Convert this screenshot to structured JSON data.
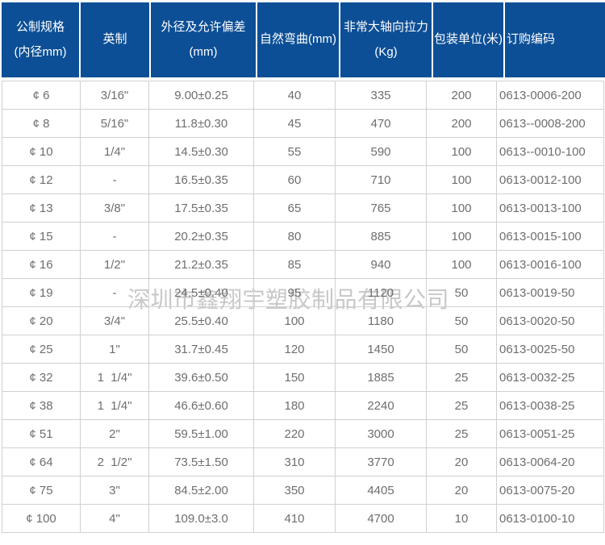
{
  "company_watermark": "深圳市鑫翔宇塑胶制品有限公司",
  "colors": {
    "header_bg": "#0c4f96",
    "header_text": "#ffffff",
    "body_text": "#6e6e6e",
    "border": "#d0d0d0",
    "watermark": "#c8c8c8"
  },
  "table": {
    "column_keys": [
      "metric-spec",
      "imperial",
      "outer-diameter",
      "natural-bend",
      "axial-tension",
      "packing-unit",
      "order-code"
    ],
    "headers": [
      {
        "lines": [
          "公制规格",
          "(内径mm)"
        ]
      },
      {
        "lines": [
          "英制"
        ]
      },
      {
        "lines": [
          "外径及允许偏差",
          "(mm)"
        ]
      },
      {
        "lines": [
          "自然弯曲(mm)"
        ]
      },
      {
        "lines": [
          "非常大轴向拉力",
          "(Kg)"
        ]
      },
      {
        "lines": [
          "包装单位(米)"
        ]
      },
      {
        "lines": [
          "订购编码"
        ]
      }
    ],
    "rows": [
      [
        "¢ 6",
        "3/16\"",
        "9.00±0.25",
        "40",
        "335",
        "200",
        "0613-0006-200"
      ],
      [
        "¢ 8",
        "5/16\"",
        "11.8±0.30",
        "45",
        "470",
        "200",
        "0613--0008-200"
      ],
      [
        "¢ 10",
        "1/4\"",
        "14.5±0.30",
        "55",
        "590",
        "100",
        "0613--0010-100"
      ],
      [
        "¢ 12",
        "-",
        "16.5±0.35",
        "60",
        "710",
        "100",
        "0613-0012-100"
      ],
      [
        "¢ 13",
        "3/8\"",
        "17.5±0.35",
        "65",
        "765",
        "100",
        "0613-0013-100"
      ],
      [
        "¢ 15",
        "-",
        "20.2±0.35",
        "80",
        "885",
        "100",
        "0613-0015-100"
      ],
      [
        "¢ 16",
        "1/2\"",
        "21.2±0.35",
        "85",
        "940",
        "100",
        "0613-0016-100"
      ],
      [
        "¢ 19",
        "-",
        "24.5±0.40",
        "95",
        "1120",
        "50",
        "0613-0019-50"
      ],
      [
        "¢ 20",
        "3/4\"",
        "25.5±0.40",
        "100",
        "1180",
        "50",
        "0613-0020-50"
      ],
      [
        "¢ 25",
        "1\"",
        "31.7±0.45",
        "120",
        "1450",
        "50",
        "0613-0025-50"
      ],
      [
        "¢ 32",
        "1  1/4\"",
        "39.6±0.50",
        "150",
        "1885",
        "25",
        "0613-0032-25"
      ],
      [
        "¢ 38",
        "1  1/4\"",
        "46.6±0.60",
        "180",
        "2240",
        "25",
        "0613-0038-25"
      ],
      [
        "¢ 51",
        "2\"",
        "59.5±1.00",
        "220",
        "3000",
        "25",
        "0613-0051-25"
      ],
      [
        "¢ 64",
        "2  1/2\"",
        "73.5±1.50",
        "310",
        "3770",
        "20",
        "0613-0064-20"
      ],
      [
        "¢ 75",
        "3\"",
        "84.5±2.00",
        "350",
        "4405",
        "20",
        "0613-0075-20"
      ],
      [
        "¢ 100",
        "4\"",
        "109.0±3.0",
        "410",
        "4700",
        "10",
        "0613-0100-10"
      ]
    ]
  }
}
